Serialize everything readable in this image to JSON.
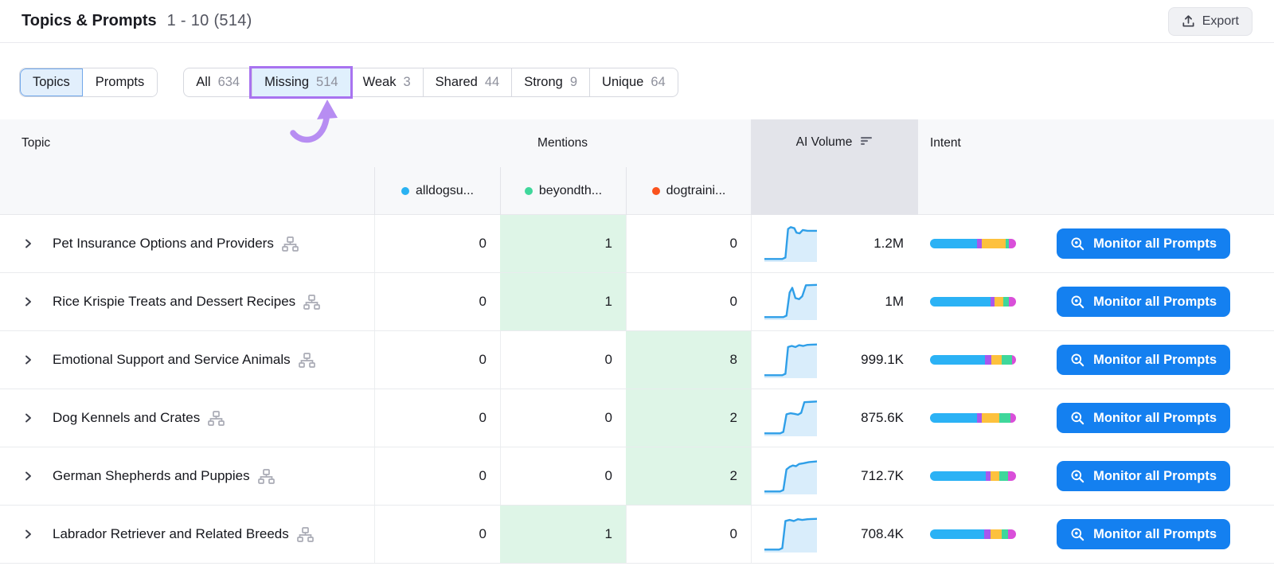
{
  "header": {
    "title": "Topics & Prompts",
    "range": "1 - 10 (514)",
    "export_label": "Export"
  },
  "view_toggle": [
    {
      "label": "Topics",
      "active": true
    },
    {
      "label": "Prompts",
      "active": false
    }
  ],
  "filters": [
    {
      "label": "All",
      "count": "634",
      "highlighted": false
    },
    {
      "label": "Missing",
      "count": "514",
      "highlighted": true
    },
    {
      "label": "Weak",
      "count": "3",
      "highlighted": false
    },
    {
      "label": "Shared",
      "count": "44",
      "highlighted": false
    },
    {
      "label": "Strong",
      "count": "9",
      "highlighted": false
    },
    {
      "label": "Unique",
      "count": "64",
      "highlighted": false
    }
  ],
  "table": {
    "columns": {
      "topic": "Topic",
      "mentions": "Mentions",
      "ai_volume": "AI Volume",
      "intent": "Intent"
    },
    "domains": [
      {
        "name": "alldogsu...",
        "color": "#2ab2f2"
      },
      {
        "name": "beyondth...",
        "color": "#3fd79b"
      },
      {
        "name": "dogtraini...",
        "color": "#fa531e"
      }
    ],
    "monitor_label": "Monitor all Prompts",
    "rows": [
      {
        "topic": "Pet Insurance Options and Providers",
        "mentions": [
          "0",
          "1",
          "0"
        ],
        "highlight": 1,
        "volume": "1.2M",
        "spark": [
          [
            0,
            8
          ],
          [
            34,
            8
          ],
          [
            40,
            12
          ],
          [
            45,
            90
          ],
          [
            50,
            95
          ],
          [
            57,
            92
          ],
          [
            61,
            80
          ],
          [
            67,
            78
          ],
          [
            73,
            87
          ],
          [
            82,
            85
          ],
          [
            100,
            85
          ]
        ],
        "intent": [
          55,
          5,
          28,
          4,
          8
        ]
      },
      {
        "topic": "Rice Krispie Treats and Dessert Recipes",
        "mentions": [
          "0",
          "1",
          "0"
        ],
        "highlight": 1,
        "volume": "1M",
        "spark": [
          [
            0,
            8
          ],
          [
            36,
            8
          ],
          [
            42,
            12
          ],
          [
            48,
            75
          ],
          [
            53,
            88
          ],
          [
            59,
            60
          ],
          [
            66,
            57
          ],
          [
            72,
            65
          ],
          [
            79,
            95
          ],
          [
            100,
            96
          ]
        ],
        "intent": [
          70,
          5,
          10,
          7,
          8
        ]
      },
      {
        "topic": "Emotional Support and Service Animals",
        "mentions": [
          "0",
          "0",
          "8"
        ],
        "highlight": 2,
        "volume": "999.1K",
        "spark": [
          [
            0,
            8
          ],
          [
            34,
            8
          ],
          [
            40,
            12
          ],
          [
            45,
            85
          ],
          [
            52,
            88
          ],
          [
            59,
            85
          ],
          [
            66,
            90
          ],
          [
            74,
            88
          ],
          [
            82,
            91
          ],
          [
            100,
            92
          ]
        ],
        "intent": [
          64,
          7,
          12,
          12,
          5
        ]
      },
      {
        "topic": "Dog Kennels and Crates",
        "mentions": [
          "0",
          "0",
          "2"
        ],
        "highlight": 2,
        "volume": "875.6K",
        "spark": [
          [
            0,
            8
          ],
          [
            30,
            8
          ],
          [
            36,
            12
          ],
          [
            42,
            60
          ],
          [
            50,
            63
          ],
          [
            58,
            61
          ],
          [
            64,
            59
          ],
          [
            70,
            64
          ],
          [
            76,
            93
          ],
          [
            100,
            95
          ]
        ],
        "intent": [
          55,
          5,
          21,
          13,
          6
        ]
      },
      {
        "topic": "German Shepherds and Puppies",
        "mentions": [
          "0",
          "0",
          "2"
        ],
        "highlight": 2,
        "volume": "712.7K",
        "spark": [
          [
            0,
            8
          ],
          [
            30,
            8
          ],
          [
            36,
            12
          ],
          [
            42,
            68
          ],
          [
            48,
            75
          ],
          [
            54,
            79
          ],
          [
            60,
            77
          ],
          [
            66,
            83
          ],
          [
            74,
            85
          ],
          [
            84,
            88
          ],
          [
            100,
            90
          ]
        ],
        "intent": [
          65,
          5,
          11,
          10,
          9
        ]
      },
      {
        "topic": "Labrador Retriever and Related Breeds",
        "mentions": [
          "0",
          "1",
          "0"
        ],
        "highlight": 1,
        "volume": "708.4K",
        "spark": [
          [
            0,
            8
          ],
          [
            28,
            8
          ],
          [
            34,
            12
          ],
          [
            40,
            86
          ],
          [
            48,
            89
          ],
          [
            56,
            86
          ],
          [
            64,
            91
          ],
          [
            72,
            89
          ],
          [
            82,
            91
          ],
          [
            100,
            92
          ]
        ],
        "intent": [
          63,
          7,
          13,
          8,
          9
        ]
      }
    ]
  },
  "colors": {
    "intent_segments": [
      "#2bb2f5",
      "#a857ee",
      "#fdc13d",
      "#3fd79b",
      "#d94fd9"
    ],
    "spark_line": "#2f9fe8",
    "spark_fill": "#d9edfb",
    "highlight_green": "#def5e7",
    "button_blue": "#1480f0",
    "annotation_purple": "#a873f0",
    "arrow_purple": "#b78df2"
  }
}
